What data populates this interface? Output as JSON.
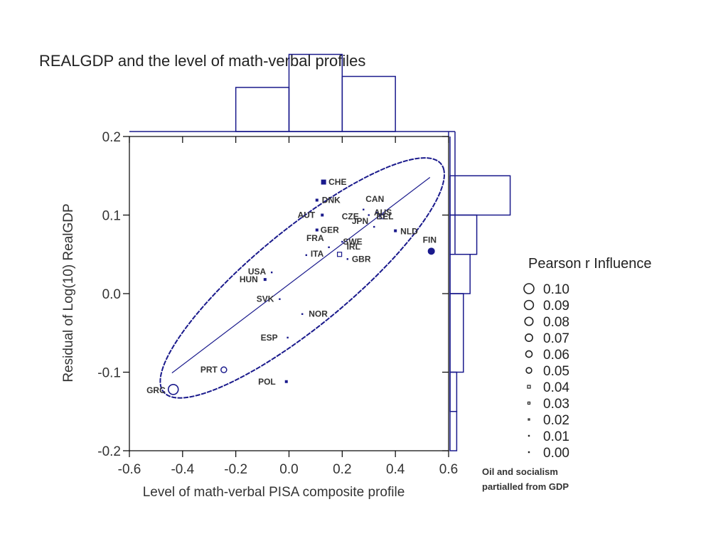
{
  "colors": {
    "primary": "#1a1a8c",
    "axis": "#000000",
    "text": "#333333"
  },
  "chart_data": {
    "type": "scatter",
    "title": "REALGDP and the level of math-verbal profiles",
    "xlabel": "Level of math-verbal PISA composite profile",
    "ylabel": "Residual of Log(10) RealGDP",
    "xlim": [
      -0.6,
      0.6
    ],
    "ylim": [
      -0.2,
      0.2
    ],
    "x_ticks": [
      "-0.6",
      "-0.4",
      "-0.2",
      "0.0",
      "0.2",
      "0.4",
      "0.6"
    ],
    "y_ticks": [
      "-0.2",
      "-0.1",
      "0.0",
      "0.1",
      "0.2"
    ],
    "points": [
      {
        "label": "CHE",
        "x": 0.13,
        "y": 0.142,
        "influence": 0.03
      },
      {
        "label": "DNK",
        "x": 0.105,
        "y": 0.119,
        "influence": 0.01
      },
      {
        "label": "CAN",
        "x": 0.28,
        "y": 0.107,
        "influence": 0.0
      },
      {
        "label": "AUT",
        "x": 0.125,
        "y": 0.1,
        "influence": 0.01
      },
      {
        "label": "CZE",
        "x": 0.3,
        "y": 0.1,
        "influence": 0.0
      },
      {
        "label": "AUS",
        "x": 0.33,
        "y": 0.103,
        "influence": 0.0
      },
      {
        "label": "BEL",
        "x": 0.35,
        "y": 0.098,
        "influence": 0.02
      },
      {
        "label": "JPN",
        "x": 0.32,
        "y": 0.085,
        "influence": 0.0
      },
      {
        "label": "GER",
        "x": 0.105,
        "y": 0.081,
        "influence": 0.01
      },
      {
        "label": "NLD",
        "x": 0.4,
        "y": 0.08,
        "influence": 0.01
      },
      {
        "label": "FIN",
        "x": 0.535,
        "y": 0.054,
        "influence": 0.06
      },
      {
        "label": "FRA",
        "x": 0.15,
        "y": 0.059,
        "influence": 0.0
      },
      {
        "label": "SWE",
        "x": 0.2,
        "y": 0.066,
        "influence": 0.0
      },
      {
        "label": "ITA",
        "x": 0.065,
        "y": 0.049,
        "influence": 0.0
      },
      {
        "label": "GBR",
        "x": 0.22,
        "y": 0.044,
        "influence": 0.0
      },
      {
        "label": "IRL",
        "x": 0.19,
        "y": 0.05,
        "influence": 0.02
      },
      {
        "label": "USA",
        "x": -0.065,
        "y": 0.027,
        "influence": 0.0
      },
      {
        "label": "HUN",
        "x": -0.09,
        "y": 0.018,
        "influence": 0.01
      },
      {
        "label": "SVK",
        "x": -0.035,
        "y": -0.007,
        "influence": 0.0
      },
      {
        "label": "NOR",
        "x": 0.05,
        "y": -0.026,
        "influence": 0.0
      },
      {
        "label": "ESP",
        "x": -0.005,
        "y": -0.056,
        "influence": 0.0
      },
      {
        "label": "PRT",
        "x": -0.245,
        "y": -0.097,
        "influence": 0.05
      },
      {
        "label": "POL",
        "x": -0.01,
        "y": -0.112,
        "influence": 0.01
      },
      {
        "label": "GRC",
        "x": -0.435,
        "y": -0.122,
        "influence": 0.1
      }
    ],
    "regression_line": {
      "x": [
        -0.44,
        0.53
      ],
      "y": [
        -0.101,
        0.148
      ]
    },
    "ellipse": {
      "cx": 0.05,
      "cy": 0.02,
      "rx_along": 0.55,
      "ry_across": 0.07,
      "angle_slope": 0.257
    },
    "x_histogram": {
      "bin_edges": [
        -0.2,
        0.0,
        0.2,
        0.4
      ],
      "counts": [
        4,
        7,
        5
      ]
    },
    "y_histogram": {
      "bin_edges": [
        -0.2,
        -0.15,
        -0.1,
        0.0,
        0.05,
        0.1,
        0.15
      ],
      "counts": [
        1,
        1,
        2,
        3,
        4,
        9
      ]
    },
    "legend": {
      "title": "Pearson r Influence",
      "entries": [
        "0.10",
        "0.09",
        "0.08",
        "0.07",
        "0.06",
        "0.05",
        "0.04",
        "0.03",
        "0.02",
        "0.01",
        "0.00"
      ]
    },
    "annotation": [
      "Oil and socialism",
      "partialled from GDP"
    ]
  }
}
